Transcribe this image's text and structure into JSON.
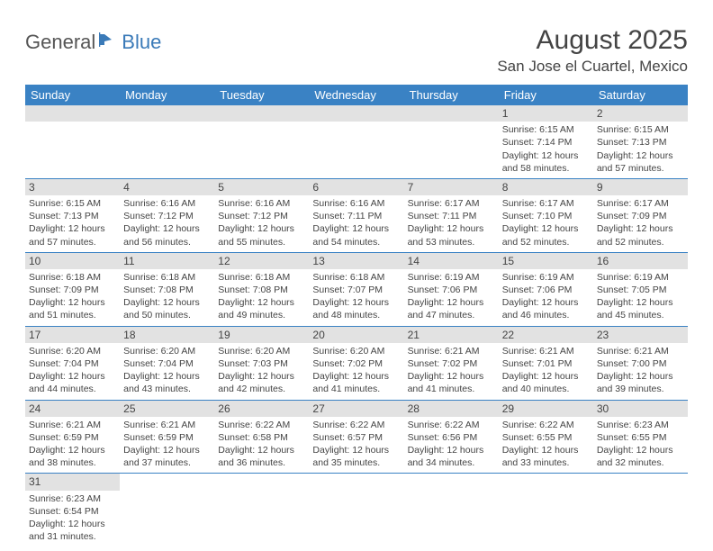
{
  "logo": {
    "part1": "General",
    "part2": "Blue"
  },
  "title": "August 2025",
  "location": "San Jose el Cuartel, Mexico",
  "colors": {
    "header_bg": "#3a82c4",
    "header_fg": "#ffffff",
    "daynum_bg": "#e2e2e2",
    "rule": "#3a82c4",
    "text": "#444444",
    "logo_blue": "#3a7ab8"
  },
  "weekdays": [
    "Sunday",
    "Monday",
    "Tuesday",
    "Wednesday",
    "Thursday",
    "Friday",
    "Saturday"
  ],
  "weeks": [
    [
      null,
      null,
      null,
      null,
      null,
      {
        "n": "1",
        "sr": "Sunrise: 6:15 AM",
        "ss": "Sunset: 7:14 PM",
        "d1": "Daylight: 12 hours",
        "d2": "and 58 minutes."
      },
      {
        "n": "2",
        "sr": "Sunrise: 6:15 AM",
        "ss": "Sunset: 7:13 PM",
        "d1": "Daylight: 12 hours",
        "d2": "and 57 minutes."
      }
    ],
    [
      {
        "n": "3",
        "sr": "Sunrise: 6:15 AM",
        "ss": "Sunset: 7:13 PM",
        "d1": "Daylight: 12 hours",
        "d2": "and 57 minutes."
      },
      {
        "n": "4",
        "sr": "Sunrise: 6:16 AM",
        "ss": "Sunset: 7:12 PM",
        "d1": "Daylight: 12 hours",
        "d2": "and 56 minutes."
      },
      {
        "n": "5",
        "sr": "Sunrise: 6:16 AM",
        "ss": "Sunset: 7:12 PM",
        "d1": "Daylight: 12 hours",
        "d2": "and 55 minutes."
      },
      {
        "n": "6",
        "sr": "Sunrise: 6:16 AM",
        "ss": "Sunset: 7:11 PM",
        "d1": "Daylight: 12 hours",
        "d2": "and 54 minutes."
      },
      {
        "n": "7",
        "sr": "Sunrise: 6:17 AM",
        "ss": "Sunset: 7:11 PM",
        "d1": "Daylight: 12 hours",
        "d2": "and 53 minutes."
      },
      {
        "n": "8",
        "sr": "Sunrise: 6:17 AM",
        "ss": "Sunset: 7:10 PM",
        "d1": "Daylight: 12 hours",
        "d2": "and 52 minutes."
      },
      {
        "n": "9",
        "sr": "Sunrise: 6:17 AM",
        "ss": "Sunset: 7:09 PM",
        "d1": "Daylight: 12 hours",
        "d2": "and 52 minutes."
      }
    ],
    [
      {
        "n": "10",
        "sr": "Sunrise: 6:18 AM",
        "ss": "Sunset: 7:09 PM",
        "d1": "Daylight: 12 hours",
        "d2": "and 51 minutes."
      },
      {
        "n": "11",
        "sr": "Sunrise: 6:18 AM",
        "ss": "Sunset: 7:08 PM",
        "d1": "Daylight: 12 hours",
        "d2": "and 50 minutes."
      },
      {
        "n": "12",
        "sr": "Sunrise: 6:18 AM",
        "ss": "Sunset: 7:08 PM",
        "d1": "Daylight: 12 hours",
        "d2": "and 49 minutes."
      },
      {
        "n": "13",
        "sr": "Sunrise: 6:18 AM",
        "ss": "Sunset: 7:07 PM",
        "d1": "Daylight: 12 hours",
        "d2": "and 48 minutes."
      },
      {
        "n": "14",
        "sr": "Sunrise: 6:19 AM",
        "ss": "Sunset: 7:06 PM",
        "d1": "Daylight: 12 hours",
        "d2": "and 47 minutes."
      },
      {
        "n": "15",
        "sr": "Sunrise: 6:19 AM",
        "ss": "Sunset: 7:06 PM",
        "d1": "Daylight: 12 hours",
        "d2": "and 46 minutes."
      },
      {
        "n": "16",
        "sr": "Sunrise: 6:19 AM",
        "ss": "Sunset: 7:05 PM",
        "d1": "Daylight: 12 hours",
        "d2": "and 45 minutes."
      }
    ],
    [
      {
        "n": "17",
        "sr": "Sunrise: 6:20 AM",
        "ss": "Sunset: 7:04 PM",
        "d1": "Daylight: 12 hours",
        "d2": "and 44 minutes."
      },
      {
        "n": "18",
        "sr": "Sunrise: 6:20 AM",
        "ss": "Sunset: 7:04 PM",
        "d1": "Daylight: 12 hours",
        "d2": "and 43 minutes."
      },
      {
        "n": "19",
        "sr": "Sunrise: 6:20 AM",
        "ss": "Sunset: 7:03 PM",
        "d1": "Daylight: 12 hours",
        "d2": "and 42 minutes."
      },
      {
        "n": "20",
        "sr": "Sunrise: 6:20 AM",
        "ss": "Sunset: 7:02 PM",
        "d1": "Daylight: 12 hours",
        "d2": "and 41 minutes."
      },
      {
        "n": "21",
        "sr": "Sunrise: 6:21 AM",
        "ss": "Sunset: 7:02 PM",
        "d1": "Daylight: 12 hours",
        "d2": "and 41 minutes."
      },
      {
        "n": "22",
        "sr": "Sunrise: 6:21 AM",
        "ss": "Sunset: 7:01 PM",
        "d1": "Daylight: 12 hours",
        "d2": "and 40 minutes."
      },
      {
        "n": "23",
        "sr": "Sunrise: 6:21 AM",
        "ss": "Sunset: 7:00 PM",
        "d1": "Daylight: 12 hours",
        "d2": "and 39 minutes."
      }
    ],
    [
      {
        "n": "24",
        "sr": "Sunrise: 6:21 AM",
        "ss": "Sunset: 6:59 PM",
        "d1": "Daylight: 12 hours",
        "d2": "and 38 minutes."
      },
      {
        "n": "25",
        "sr": "Sunrise: 6:21 AM",
        "ss": "Sunset: 6:59 PM",
        "d1": "Daylight: 12 hours",
        "d2": "and 37 minutes."
      },
      {
        "n": "26",
        "sr": "Sunrise: 6:22 AM",
        "ss": "Sunset: 6:58 PM",
        "d1": "Daylight: 12 hours",
        "d2": "and 36 minutes."
      },
      {
        "n": "27",
        "sr": "Sunrise: 6:22 AM",
        "ss": "Sunset: 6:57 PM",
        "d1": "Daylight: 12 hours",
        "d2": "and 35 minutes."
      },
      {
        "n": "28",
        "sr": "Sunrise: 6:22 AM",
        "ss": "Sunset: 6:56 PM",
        "d1": "Daylight: 12 hours",
        "d2": "and 34 minutes."
      },
      {
        "n": "29",
        "sr": "Sunrise: 6:22 AM",
        "ss": "Sunset: 6:55 PM",
        "d1": "Daylight: 12 hours",
        "d2": "and 33 minutes."
      },
      {
        "n": "30",
        "sr": "Sunrise: 6:23 AM",
        "ss": "Sunset: 6:55 PM",
        "d1": "Daylight: 12 hours",
        "d2": "and 32 minutes."
      }
    ],
    [
      {
        "n": "31",
        "sr": "Sunrise: 6:23 AM",
        "ss": "Sunset: 6:54 PM",
        "d1": "Daylight: 12 hours",
        "d2": "and 31 minutes."
      },
      null,
      null,
      null,
      null,
      null,
      null
    ]
  ]
}
